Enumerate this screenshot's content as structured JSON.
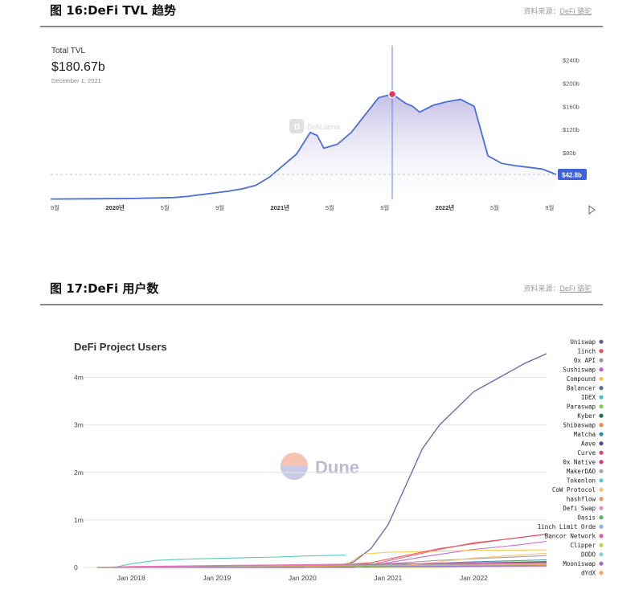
{
  "fig16": {
    "title": "图 16:DeFi TVL 趋势",
    "source_prefix": "资料来源：",
    "source_name": "DeFi 骆驼"
  },
  "fig17": {
    "title": "图 17:DeFi 用户数",
    "source_prefix": "资料来源：",
    "source_name": "DeFi 骆驼"
  },
  "chart_data": [
    {
      "type": "area",
      "label": "Total TVL",
      "highlight_value": "$180.67b",
      "highlight_date": "December 1, 2021",
      "current_value_label": "$42.8b",
      "watermark": "DefiLlama",
      "x_ticks": [
        "9월",
        "2020년",
        "5월",
        "9월",
        "2021년",
        "5월",
        "9월",
        "2022년",
        "5월",
        "9월"
      ],
      "y_ticks": [
        "$240b",
        "$200b",
        "$160b",
        "$120b",
        "$80b"
      ],
      "ylim": [
        0,
        260
      ],
      "x_unit": "months since Sep 2019",
      "series": [
        {
          "name": "Total TVL",
          "x": [
            0,
            3,
            6,
            9,
            10,
            11,
            12,
            13,
            14,
            15,
            16,
            17,
            18,
            19,
            19.5,
            20,
            21,
            22,
            23,
            24,
            25,
            26,
            26.5,
            27,
            28,
            29,
            30,
            31,
            32,
            33,
            34,
            35,
            36,
            37
          ],
          "values": [
            0.6,
            1,
            1.5,
            3,
            5,
            8,
            11,
            14,
            18,
            24,
            38,
            58,
            78,
            115,
            110,
            88,
            95,
            115,
            145,
            175,
            181,
            165,
            160,
            150,
            162,
            168,
            172,
            160,
            75,
            62,
            58,
            55,
            52,
            42.8
          ]
        }
      ]
    },
    {
      "type": "line",
      "title": "DeFi Project Users",
      "watermark": "Dune",
      "x_ticks": [
        "Jan 2018",
        "Jan 2019",
        "Jan 2020",
        "Jan 2021",
        "Jan 2022"
      ],
      "x_tick_years": [
        2018,
        2019,
        2020,
        2021,
        2022
      ],
      "xlim": [
        2017.5,
        2022.85
      ],
      "y_ticks": [
        "0",
        "1m",
        "2m",
        "3m",
        "4m"
      ],
      "y_tick_values": [
        0,
        1,
        2,
        3,
        4
      ],
      "ylim": [
        0,
        4.5
      ],
      "y_unit": "millions of users",
      "legend": [
        {
          "name": "Uniswap",
          "color": "#5c5ba8"
        },
        {
          "name": "1inch",
          "color": "#ef4f4f"
        },
        {
          "name": "0x API",
          "color": "#9a9a9a"
        },
        {
          "name": "Sushiswap",
          "color": "#c35bd0"
        },
        {
          "name": "Compound",
          "color": "#f5c542"
        },
        {
          "name": "Balancer",
          "color": "#546fa3"
        },
        {
          "name": "IDEX",
          "color": "#42c7b5"
        },
        {
          "name": "Paraswap",
          "color": "#7bcf55"
        },
        {
          "name": "Kyber",
          "color": "#1f6b5c"
        },
        {
          "name": "Shibaswap",
          "color": "#f08a3c"
        },
        {
          "name": "Matcha",
          "color": "#2f8fa6"
        },
        {
          "name": "Aave",
          "color": "#6b3f8f"
        },
        {
          "name": "Curve",
          "color": "#e8465b"
        },
        {
          "name": "0x Native",
          "color": "#d43a7a"
        },
        {
          "name": "MakerDAO",
          "color": "#a8a8a8"
        },
        {
          "name": "Tokenlon",
          "color": "#5bc7e8"
        },
        {
          "name": "CoW Protocol",
          "color": "#f8c46a"
        },
        {
          "name": "hashflow",
          "color": "#f0965a"
        },
        {
          "name": "Defi Swap",
          "color": "#e68ad0"
        },
        {
          "name": "Oasis",
          "color": "#4fb85a"
        },
        {
          "name": "1inch Limit Orde",
          "color": "#8ab4e8"
        },
        {
          "name": "Bancor Network",
          "color": "#e85ab9"
        },
        {
          "name": "Clipper",
          "color": "#c4d44a"
        },
        {
          "name": "DODO",
          "color": "#7fd8c8"
        },
        {
          "name": "Mooniswap",
          "color": "#9b6fc7"
        },
        {
          "name": "dYdX",
          "color": "#f0a85a"
        }
      ],
      "series": [
        {
          "name": "Uniswap",
          "x": [
            2017.6,
            2020.0,
            2020.4,
            2020.6,
            2020.8,
            2021.0,
            2021.2,
            2021.4,
            2021.6,
            2021.8,
            2022.0,
            2022.2,
            2022.4,
            2022.6,
            2022.85
          ],
          "values": [
            0,
            0,
            0.02,
            0.12,
            0.4,
            0.9,
            1.7,
            2.5,
            3.0,
            3.35,
            3.7,
            3.9,
            4.1,
            4.3,
            4.5
          ]
        },
        {
          "name": "1inch",
          "x": [
            2017.6,
            2020.3,
            2020.8,
            2021.2,
            2021.6,
            2022.0,
            2022.4,
            2022.85
          ],
          "values": [
            0,
            0,
            0.06,
            0.22,
            0.38,
            0.52,
            0.6,
            0.7
          ]
        },
        {
          "name": "0x API",
          "x": [
            2017.6,
            2020.0,
            2021.0,
            2021.6,
            2022.2,
            2022.85
          ],
          "values": [
            0,
            0,
            0.08,
            0.15,
            0.2,
            0.25
          ]
        },
        {
          "name": "Sushiswap",
          "x": [
            2017.6,
            2020.7,
            2021.0,
            2021.5,
            2022.0,
            2022.5,
            2022.85
          ],
          "values": [
            0,
            0,
            0.1,
            0.25,
            0.38,
            0.47,
            0.55
          ]
        },
        {
          "name": "Compound",
          "x": [
            2017.6,
            2020.4,
            2020.55,
            2020.7,
            2021.0,
            2021.5,
            2022.0,
            2022.85
          ],
          "values": [
            0,
            0,
            0.1,
            0.28,
            0.32,
            0.34,
            0.36,
            0.37
          ]
        },
        {
          "name": "Balancer",
          "x": [
            2017.6,
            2020.3,
            2021.0,
            2022.0,
            2022.85
          ],
          "values": [
            0,
            0,
            0.05,
            0.09,
            0.12
          ]
        },
        {
          "name": "IDEX",
          "x": [
            2017.6,
            2017.8,
            2018.0,
            2018.3,
            2018.7,
            2019.2,
            2019.7,
            2020.0,
            2020.5
          ],
          "values": [
            0,
            0,
            0.08,
            0.15,
            0.18,
            0.2,
            0.22,
            0.24,
            0.26
          ]
        },
        {
          "name": "Paraswap",
          "x": [
            2017.6,
            2020.0,
            2021.0,
            2022.0,
            2022.85
          ],
          "values": [
            0,
            0,
            0.05,
            0.1,
            0.13
          ]
        },
        {
          "name": "Kyber",
          "x": [
            2017.6,
            2018.5,
            2019.5,
            2020.5,
            2021.5,
            2022.85
          ],
          "values": [
            0,
            0.02,
            0.03,
            0.05,
            0.08,
            0.1
          ]
        },
        {
          "name": "Shibaswap",
          "x": [
            2017.6,
            2021.5,
            2022.0,
            2022.85
          ],
          "values": [
            0,
            0,
            0.06,
            0.08
          ]
        },
        {
          "name": "Matcha",
          "x": [
            2017.6,
            2020.3,
            2021.0,
            2022.0,
            2022.85
          ],
          "values": [
            0,
            0,
            0.05,
            0.12,
            0.16
          ]
        },
        {
          "name": "Aave",
          "x": [
            2017.6,
            2020.0,
            2021.0,
            2022.0,
            2022.85
          ],
          "values": [
            0,
            0,
            0.04,
            0.09,
            0.12
          ]
        },
        {
          "name": "Curve",
          "x": [
            2017.6,
            2020.0,
            2020.8,
            2021.2,
            2021.6,
            2022.0,
            2022.4,
            2022.85
          ],
          "values": [
            0,
            0,
            0.1,
            0.25,
            0.4,
            0.5,
            0.6,
            0.7
          ]
        },
        {
          "name": "0x Native",
          "x": [
            2017.6,
            2018.0,
            2019.0,
            2020.0,
            2021.0,
            2022.85
          ],
          "values": [
            0,
            0.01,
            0.02,
            0.03,
            0.05,
            0.07
          ]
        },
        {
          "name": "MakerDAO",
          "x": [
            2017.6,
            2018.0,
            2019.0,
            2020.0,
            2021.0,
            2022.85
          ],
          "values": [
            0,
            0.01,
            0.02,
            0.04,
            0.06,
            0.08
          ]
        },
        {
          "name": "Tokenlon",
          "x": [
            2017.6,
            2019.5,
            2020.5,
            2021.5,
            2022.85
          ],
          "values": [
            0,
            0.01,
            0.03,
            0.05,
            0.06
          ]
        },
        {
          "name": "CoW Protocol",
          "x": [
            2017.6,
            2021.0,
            2021.5,
            2022.0,
            2022.85
          ],
          "values": [
            0,
            0,
            0.1,
            0.2,
            0.3
          ]
        },
        {
          "name": "hashflow",
          "x": [
            2017.6,
            2021.5,
            2022.0,
            2022.85
          ],
          "values": [
            0,
            0,
            0.03,
            0.06
          ]
        },
        {
          "name": "Defi Swap",
          "x": [
            2017.6,
            2021.3,
            2022.0,
            2022.85
          ],
          "values": [
            0,
            0,
            0.05,
            0.08
          ]
        },
        {
          "name": "Oasis",
          "x": [
            2017.6,
            2019.0,
            2020.0,
            2021.0,
            2022.85
          ],
          "values": [
            0,
            0.01,
            0.02,
            0.03,
            0.04
          ]
        },
        {
          "name": "1inch Limit Orde",
          "x": [
            2017.6,
            2021.0,
            2022.0,
            2022.85
          ],
          "values": [
            0,
            0,
            0.04,
            0.07
          ]
        },
        {
          "name": "Bancor Network",
          "x": [
            2017.6,
            2018.0,
            2019.0,
            2020.0,
            2021.0,
            2022.85
          ],
          "values": [
            0,
            0.02,
            0.04,
            0.06,
            0.08,
            0.1
          ]
        },
        {
          "name": "Clipper",
          "x": [
            2017.6,
            2021.5,
            2022.85
          ],
          "values": [
            0,
            0,
            0.03
          ]
        },
        {
          "name": "DODO",
          "x": [
            2017.6,
            2020.7,
            2021.5,
            2022.85
          ],
          "values": [
            0,
            0,
            0.04,
            0.07
          ]
        },
        {
          "name": "Mooniswap",
          "x": [
            2017.6,
            2020.6,
            2021.0,
            2022.85
          ],
          "values": [
            0,
            0,
            0.02,
            0.03
          ]
        },
        {
          "name": "dYdX",
          "x": [
            2017.6,
            2019.0,
            2020.0,
            2021.0,
            2022.85
          ],
          "values": [
            0,
            0.01,
            0.02,
            0.04,
            0.06
          ]
        }
      ]
    }
  ]
}
